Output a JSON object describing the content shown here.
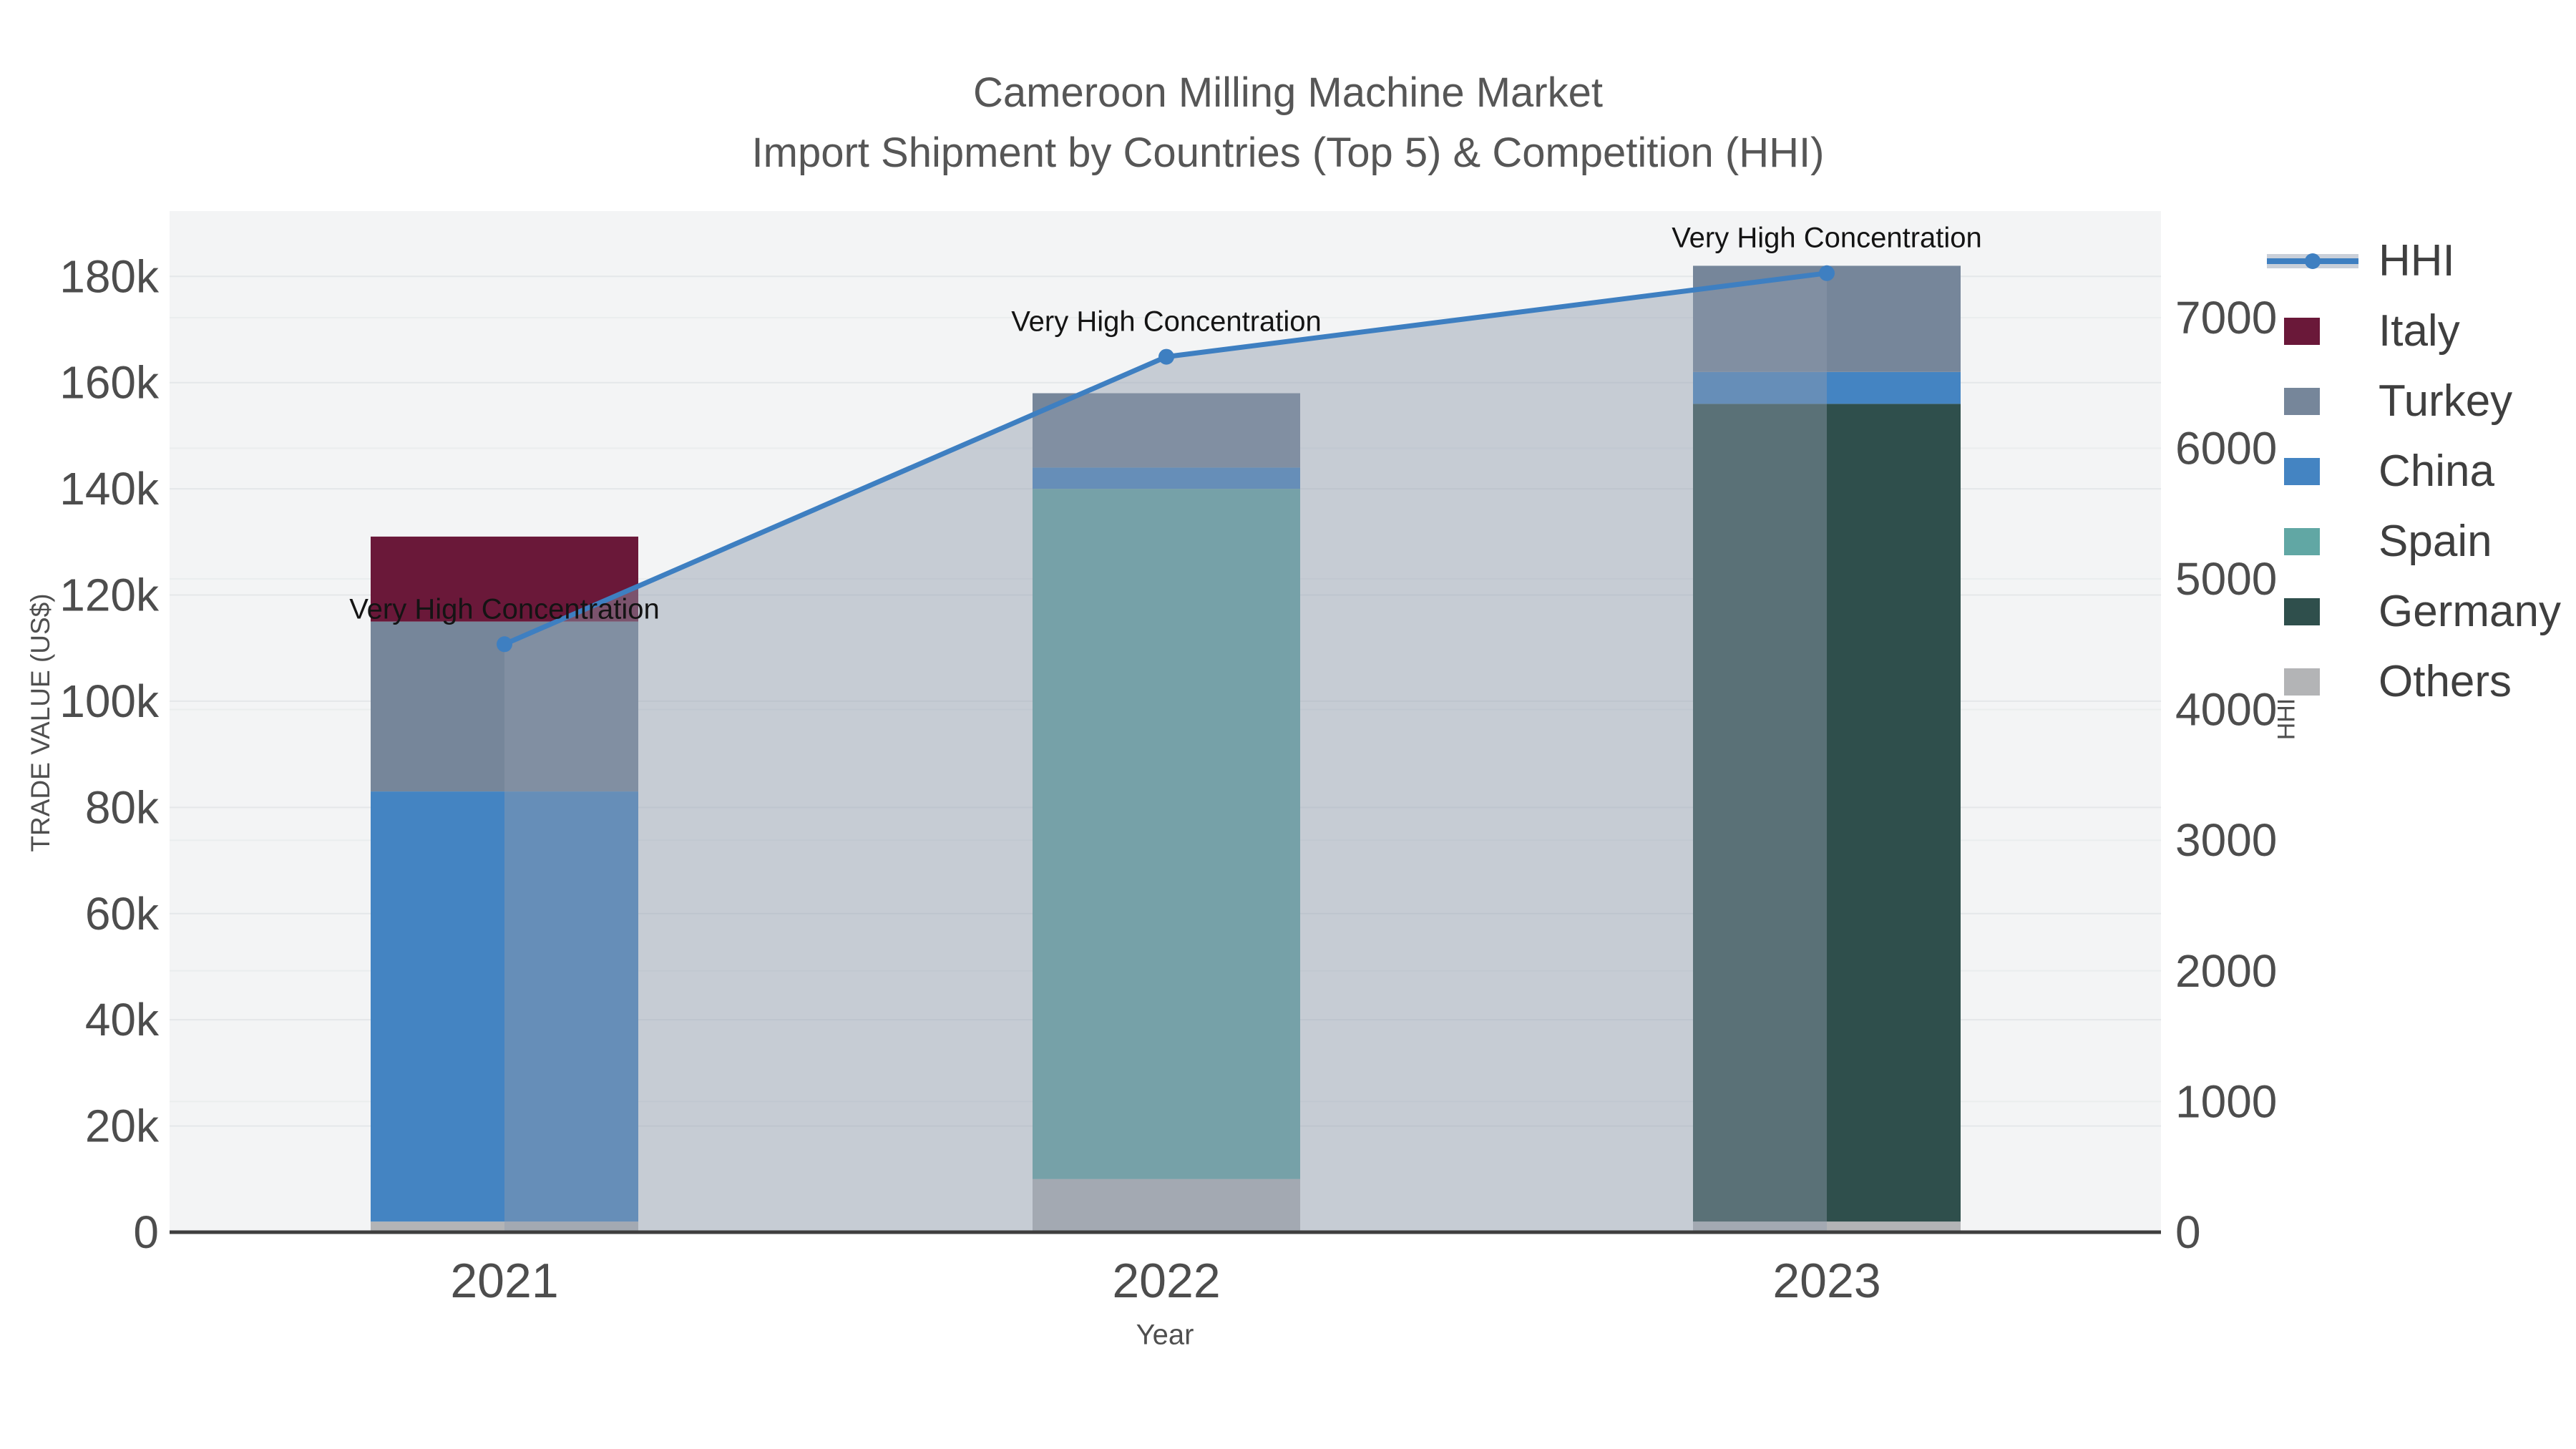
{
  "chart_data": {
    "type": "bar+line",
    "title": "Cameroon Milling Machine Market",
    "subtitle": "Import Shipment by Countries (Top 5) & Competition (HHI)",
    "xlabel": "Year",
    "ylabel_left": "TRADE VALUE (US$)",
    "ylabel_right": "HHI",
    "categories": [
      "2021",
      "2022",
      "2023"
    ],
    "bar_totals": [
      131000,
      158000,
      182000
    ],
    "series": [
      {
        "name": "Others",
        "color": "#b3b4b6",
        "values": [
          2000,
          10000,
          2000
        ]
      },
      {
        "name": "Germany",
        "color": "#2f4f4c",
        "values": [
          0,
          0,
          154000
        ]
      },
      {
        "name": "Spain",
        "color": "#61a7a4",
        "values": [
          0,
          130000,
          0
        ]
      },
      {
        "name": "China",
        "color": "#4484c2",
        "values": [
          81000,
          4000,
          6000
        ]
      },
      {
        "name": "Turkey",
        "color": "#76869a",
        "values": [
          32000,
          14000,
          20000
        ]
      },
      {
        "name": "Italy",
        "color": "#6a1839",
        "values": [
          16000,
          0,
          0
        ]
      }
    ],
    "line_series": {
      "name": "HHI",
      "color": "#3e7fc1",
      "area_fill": "rgba(144,156,172,0.45)",
      "values": [
        4500,
        6700,
        7340
      ]
    },
    "annotations": [
      {
        "category": "2021",
        "text": "Very High Concentration"
      },
      {
        "category": "2022",
        "text": "Very High Concentration"
      },
      {
        "category": "2023",
        "text": "Very High Concentration"
      }
    ],
    "left_axis": {
      "tick_labels": [
        "0",
        "20k",
        "40k",
        "60k",
        "80k",
        "100k",
        "120k",
        "140k",
        "160k",
        "180k"
      ],
      "tick_values": [
        0,
        20000,
        40000,
        60000,
        80000,
        100000,
        120000,
        140000,
        160000,
        180000
      ],
      "range": [
        0,
        192300
      ],
      "grid": true
    },
    "right_axis": {
      "tick_labels": [
        "0",
        "1000",
        "2000",
        "3000",
        "4000",
        "5000",
        "6000",
        "7000"
      ],
      "tick_values": [
        0,
        1000,
        2000,
        3000,
        4000,
        5000,
        6000,
        7000
      ],
      "range": [
        0,
        7815
      ],
      "grid": true
    },
    "legend": {
      "position": "right",
      "entries": [
        {
          "label": "HHI",
          "glyph": "line",
          "color": "#3e7fc1"
        },
        {
          "label": "Italy",
          "glyph": "swatch",
          "color": "#6a1839"
        },
        {
          "label": "Turkey",
          "glyph": "swatch",
          "color": "#76869a"
        },
        {
          "label": "China",
          "glyph": "swatch",
          "color": "#4484c2"
        },
        {
          "label": "Spain",
          "glyph": "swatch",
          "color": "#61a7a4"
        },
        {
          "label": "Germany",
          "glyph": "swatch",
          "color": "#2f4f4c"
        },
        {
          "label": "Others",
          "glyph": "swatch",
          "color": "#b3b4b6"
        }
      ]
    },
    "colors": {
      "plot_background": "#f3f4f5",
      "grid_left": "#e4e7e9",
      "grid_right": "#eaedee",
      "axis_line": "#3e3e3e",
      "tick_text": "#4d4d4d",
      "annotation_text": "#141414"
    }
  }
}
